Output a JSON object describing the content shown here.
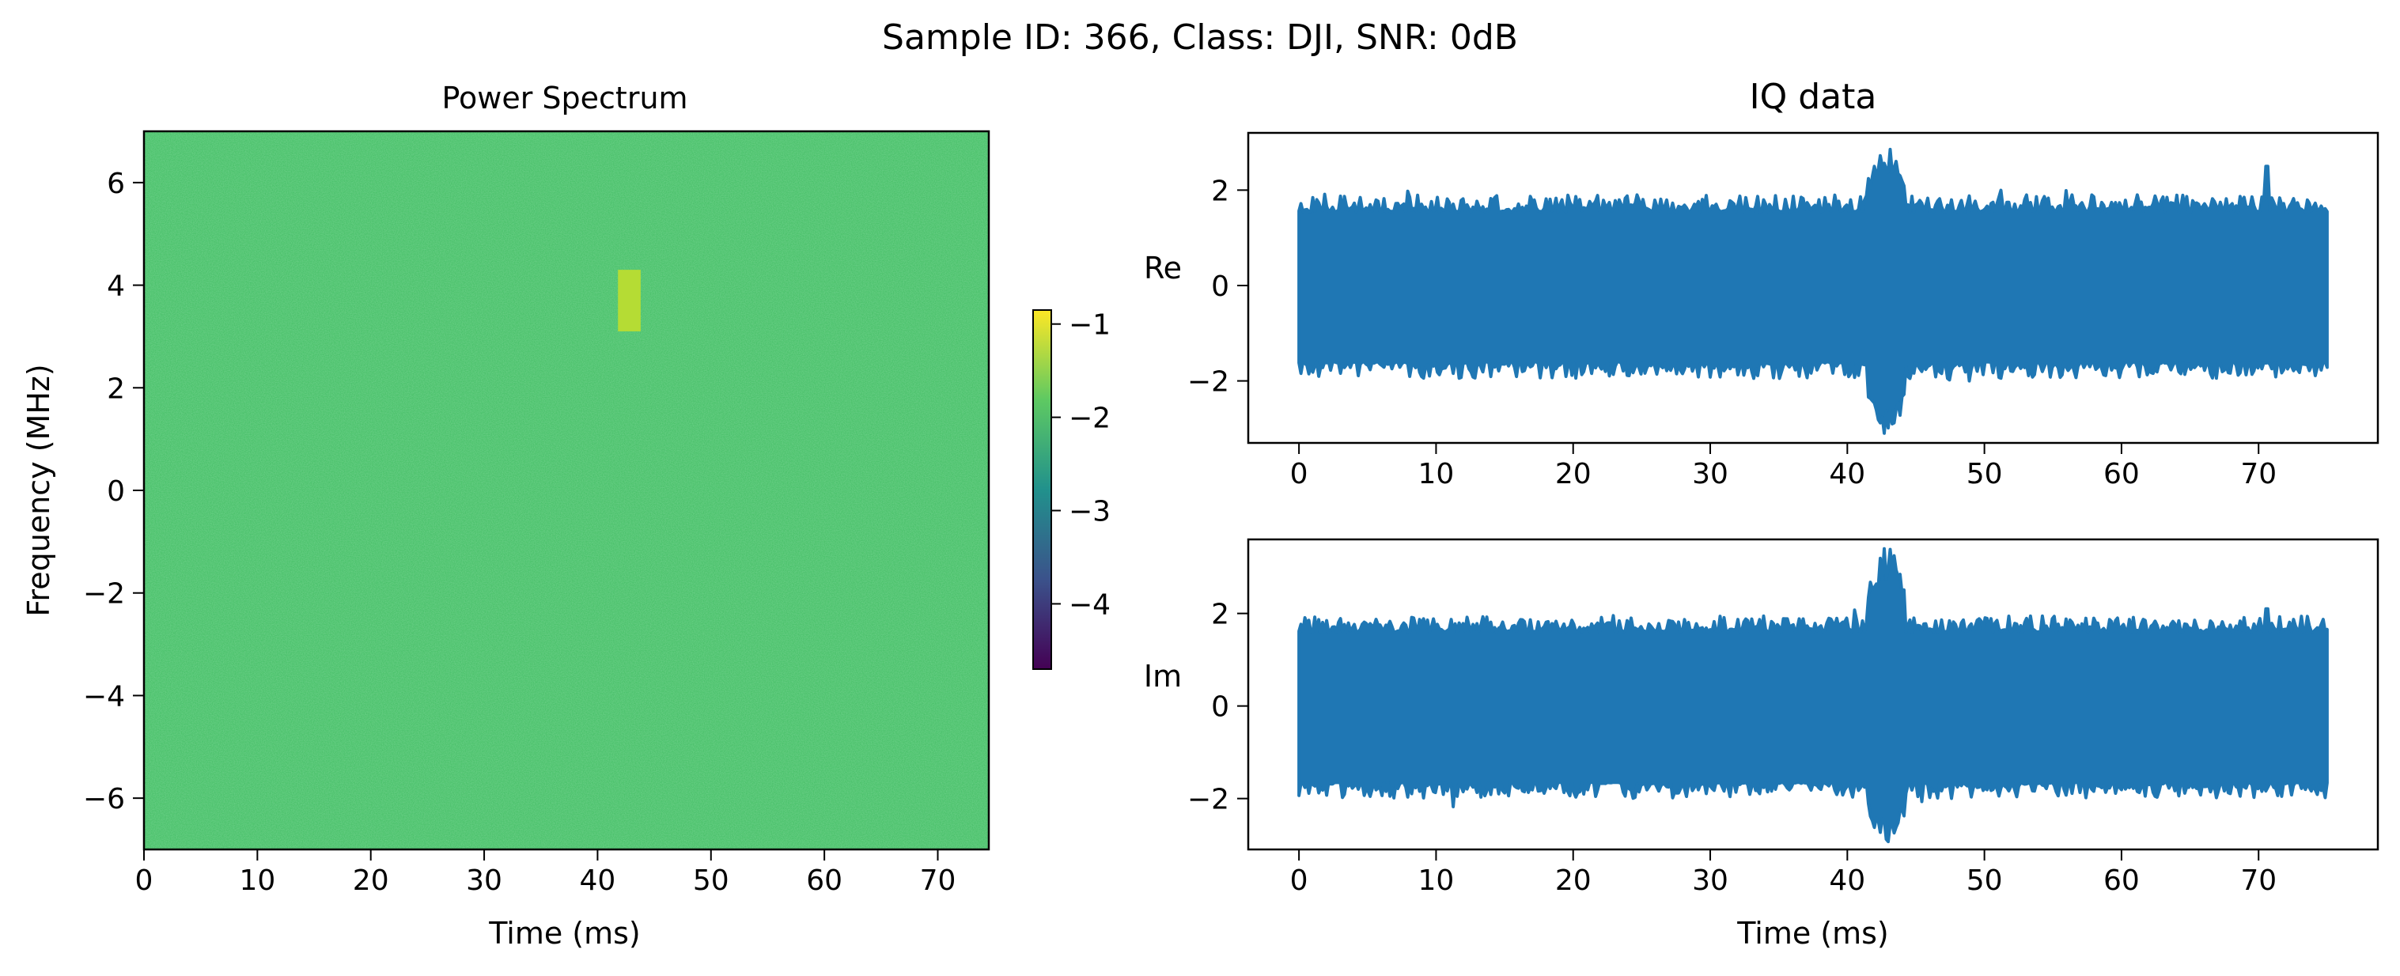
{
  "figure": {
    "suptitle": "Sample ID: 366, Class: DJI, SNR: 0dB"
  },
  "colors": {
    "background_green": "#4cc26c",
    "burst_yellow": "#b5dc34",
    "line_blue": "#1f77b4",
    "colormap": [
      "#440154",
      "#3b528b",
      "#21918c",
      "#5ec962",
      "#fde725"
    ]
  },
  "chart_data": [
    {
      "type": "heatmap",
      "title": "Power Spectrum",
      "xlabel": "Time (ms)",
      "ylabel": "Frequency (MHz)",
      "xlim": [
        0,
        74.5
      ],
      "ylim": [
        -7,
        7
      ],
      "xticks": [
        0,
        10,
        20,
        30,
        40,
        50,
        60,
        70
      ],
      "xtick_labels": [
        "0",
        "10",
        "20",
        "30",
        "40",
        "50",
        "60",
        "70"
      ],
      "yticks": [
        6,
        4,
        2,
        0,
        -2,
        -4,
        -6
      ],
      "ytick_labels": [
        "6",
        "4",
        "2",
        "0",
        "−2",
        "−4",
        "−6"
      ],
      "background_level": -1.9,
      "burst": {
        "x_range": [
          41.8,
          43.8
        ],
        "y_range": [
          3.1,
          4.3
        ],
        "level": -1.2
      },
      "colorbar": {
        "range": [
          -4.7,
          -0.85
        ],
        "ticks": [
          -1,
          -2,
          -3,
          -4
        ],
        "tick_labels": [
          "−1",
          "−2",
          "−3",
          "−4"
        ]
      }
    },
    {
      "type": "line",
      "title": "IQ data",
      "ylabel": "Re",
      "xlabel": "",
      "xlim": [
        -3.7,
        78.7
      ],
      "ylim": [
        -3.3,
        3.2
      ],
      "xticks": [
        0,
        10,
        20,
        30,
        40,
        50,
        60,
        70
      ],
      "xtick_labels": [
        "0",
        "10",
        "20",
        "30",
        "40",
        "50",
        "60",
        "70"
      ],
      "yticks": [
        2,
        0,
        -2
      ],
      "ytick_labels": [
        "2",
        "0",
        "−2"
      ],
      "x_range": [
        0,
        75
      ],
      "envelope_upper": 1.55,
      "envelope_lower": -1.6,
      "burst": {
        "x_range": [
          41.5,
          44.2
        ],
        "max": 2.9,
        "min": -3.2
      },
      "notable_peaks": [
        {
          "x": 70.6,
          "y": 2.5
        }
      ]
    },
    {
      "type": "line",
      "ylabel": "Im",
      "xlabel": "Time (ms)",
      "xlim": [
        -3.7,
        78.7
      ],
      "ylim": [
        -3.1,
        3.6
      ],
      "xticks": [
        0,
        10,
        20,
        30,
        40,
        50,
        60,
        70
      ],
      "xtick_labels": [
        "0",
        "10",
        "20",
        "30",
        "40",
        "50",
        "60",
        "70"
      ],
      "yticks": [
        2,
        0,
        -2
      ],
      "ytick_labels": [
        "2",
        "0",
        "−2"
      ],
      "x_range": [
        0,
        75
      ],
      "envelope_upper": 1.6,
      "envelope_lower": -1.65,
      "burst": {
        "x_range": [
          41.5,
          44.2
        ],
        "max": 3.45,
        "min": -3.0
      },
      "notable_peaks": [
        {
          "x": 70.6,
          "y": 2.1
        }
      ]
    }
  ]
}
